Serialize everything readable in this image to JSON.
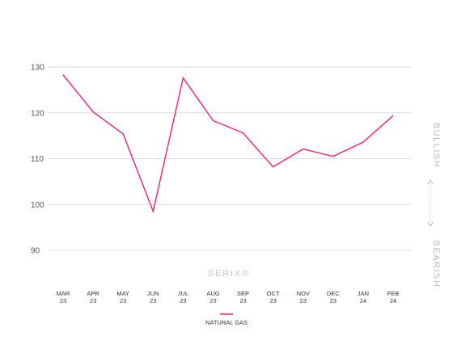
{
  "chart_data": {
    "type": "line",
    "title": "",
    "xlabel": "",
    "ylabel": "",
    "categories": [
      [
        "MAR",
        "23"
      ],
      [
        "APR",
        "23"
      ],
      [
        "MAY",
        "23"
      ],
      [
        "JUN",
        "23"
      ],
      [
        "JUL",
        "23"
      ],
      [
        "AUG",
        "23"
      ],
      [
        "SEP",
        "23"
      ],
      [
        "OCT",
        "23"
      ],
      [
        "NOV",
        "23"
      ],
      [
        "DEC",
        "23"
      ],
      [
        "JAN",
        "24"
      ],
      [
        "FEB",
        "24"
      ]
    ],
    "series": [
      {
        "name": "NATURAL GAS",
        "color": "#ff2a7a",
        "values": [
          128.3,
          120.2,
          115.4,
          98.5,
          127.6,
          118.3,
          115.6,
          108.2,
          112.1,
          110.5,
          113.6,
          119.4
        ]
      }
    ],
    "yticks": [
      90,
      100,
      110,
      120,
      130
    ],
    "ylim": [
      90,
      130
    ],
    "grid": true,
    "legend_position": "bottom-center",
    "watermark": "SERIX®",
    "side_labels": {
      "top": "BULLISH",
      "bottom": "BEARISH"
    }
  }
}
